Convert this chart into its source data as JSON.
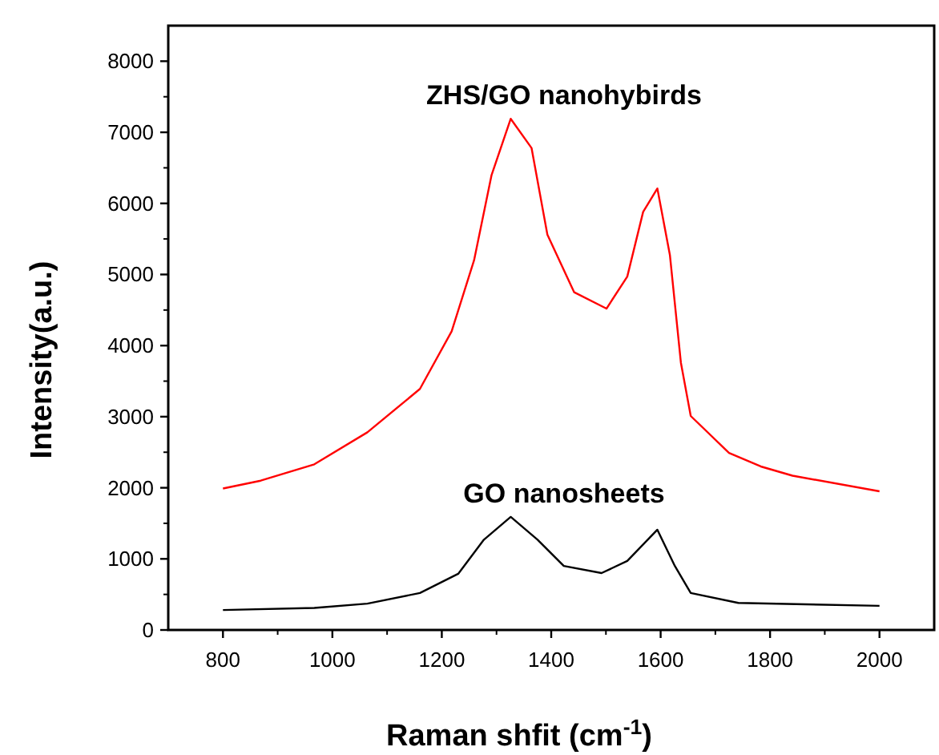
{
  "chart_data": {
    "type": "line",
    "xlabel": "Raman shfit (cm$^{-1}$)",
    "ylabel": "Intensity(a.u.)",
    "xlim": [
      700,
      2100
    ],
    "xticks": [
      800,
      1000,
      1200,
      1400,
      1600,
      1800,
      2000
    ],
    "ylim": [
      0,
      8500
    ],
    "yticks": [
      0,
      1000,
      2000,
      3000,
      4000,
      5000,
      6000,
      7000,
      8000
    ],
    "grid": false,
    "marker": "none",
    "line_style": "solid",
    "series": [
      {
        "name": "ZHS/GO nanohybirds",
        "color": "#ff0000",
        "x": [
          800,
          869,
          967,
          1064,
          1160,
          1218,
          1259,
          1291,
          1326,
          1364,
          1393,
          1442,
          1501,
          1539,
          1568,
          1594,
          1617,
          1637,
          1655,
          1725,
          1783,
          1841,
          2000
        ],
        "values": [
          1990,
          2100,
          2330,
          2780,
          3390,
          4200,
          5200,
          6400,
          7190,
          6780,
          5560,
          4750,
          4520,
          4970,
          5880,
          6210,
          5270,
          3760,
          3010,
          2490,
          2300,
          2170,
          1950
        ]
      },
      {
        "name": "GO nanosheets",
        "color": "#000000",
        "x": [
          800,
          967,
          1064,
          1160,
          1230,
          1277,
          1326,
          1375,
          1423,
          1492,
          1539,
          1594,
          1626,
          1655,
          1742,
          2000
        ],
        "values": [
          280,
          310,
          370,
          520,
          790,
          1270,
          1590,
          1270,
          900,
          800,
          970,
          1410,
          900,
          520,
          380,
          340
        ]
      }
    ]
  }
}
